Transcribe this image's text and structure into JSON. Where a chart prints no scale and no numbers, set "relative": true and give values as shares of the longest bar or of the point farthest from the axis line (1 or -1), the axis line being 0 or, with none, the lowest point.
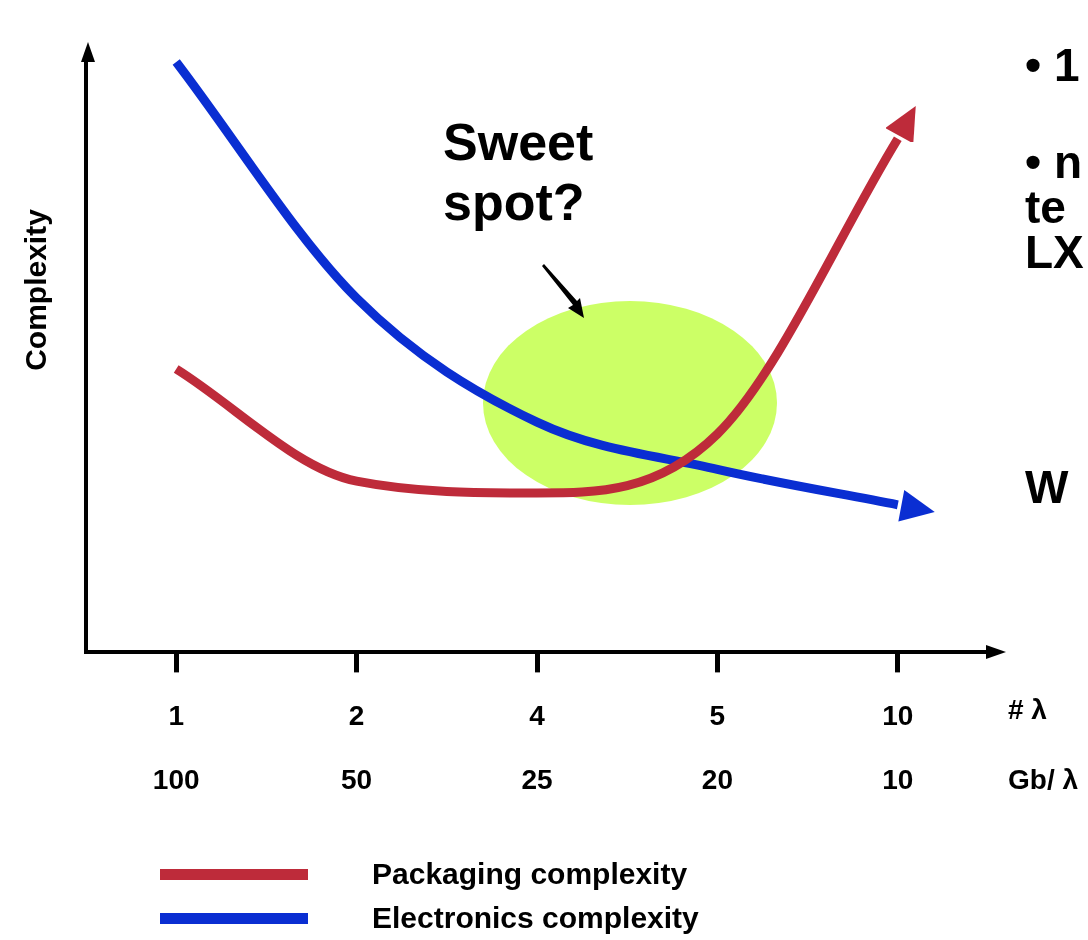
{
  "chart_data": {
    "type": "line",
    "relative": true,
    "ylabel": "Complexity",
    "xlabel": "# λ",
    "categories": [
      "1",
      "2",
      "4",
      "5",
      "10"
    ],
    "series": [
      {
        "name": "Packaging complexity",
        "color": "#be2b3a",
        "values": [
          0.48,
          0.29,
          0.27,
          0.37,
          0.87
        ]
      },
      {
        "name": "Electronics complexity",
        "color": "#0a2ed2",
        "values": [
          1,
          0.6,
          0.39,
          0.31,
          0.25
        ]
      }
    ],
    "annotations": [
      "Sweet spot?",
      "• 1",
      "• n",
      "te",
      "LX",
      "W",
      "Gb/ λ",
      "100",
      "50",
      "25",
      "20",
      "10"
    ],
    "legend": "bottom",
    "marker": "none",
    "line_style": "solid",
    "grid": false
  }
}
